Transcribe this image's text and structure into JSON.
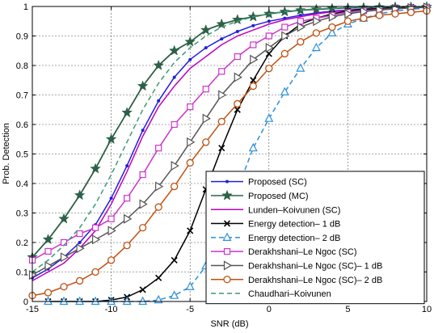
{
  "chart_data": {
    "type": "line",
    "title": "",
    "xlabel": "SNR (dB)",
    "ylabel": "Prob. Detection",
    "xlim": [
      -15,
      10
    ],
    "ylim": [
      0,
      1
    ],
    "xticks": [
      -15,
      -10,
      -5,
      0,
      5,
      10
    ],
    "yticks": [
      0,
      0.1,
      0.2,
      0.3,
      0.4,
      0.5,
      0.6,
      0.7,
      0.8,
      0.9,
      1
    ],
    "grid": true,
    "legend_position": "bottom-right",
    "series": [
      {
        "name": "Proposed (SC)",
        "color": "#1f1fe0",
        "line": "solid",
        "marker": "dot",
        "x": [
          -15,
          -14,
          -13,
          -12,
          -11,
          -10,
          -9,
          -8,
          -7,
          -6,
          -5,
          -4,
          -3,
          -2,
          -1,
          0,
          1,
          2,
          3,
          4,
          5,
          6,
          7,
          8,
          9,
          10
        ],
        "y": [
          0.08,
          0.11,
          0.15,
          0.2,
          0.26,
          0.35,
          0.46,
          0.58,
          0.68,
          0.76,
          0.82,
          0.86,
          0.89,
          0.915,
          0.935,
          0.95,
          0.96,
          0.97,
          0.978,
          0.984,
          0.988,
          0.991,
          0.993,
          0.995,
          0.996,
          0.997
        ]
      },
      {
        "name": "Proposed (MC)",
        "color": "#2e6048",
        "line": "solid",
        "marker": "star",
        "x": [
          -15,
          -14,
          -13,
          -12,
          -11,
          -10,
          -9,
          -8,
          -7,
          -6,
          -5,
          -4,
          -3,
          -2,
          -1,
          0,
          1,
          2,
          3,
          4,
          5,
          6,
          7,
          8,
          9,
          10
        ],
        "y": [
          0.15,
          0.21,
          0.28,
          0.36,
          0.45,
          0.55,
          0.64,
          0.73,
          0.8,
          0.85,
          0.88,
          0.92,
          0.94,
          0.955,
          0.965,
          0.975,
          0.982,
          0.987,
          0.99,
          0.993,
          0.995,
          0.996,
          0.997,
          0.998,
          0.998,
          0.999
        ]
      },
      {
        "name": "Lunden–Koivunen (SC)",
        "color": "#c000c0",
        "line": "solid",
        "marker": "none",
        "x": [
          -15,
          -14,
          -13,
          -12,
          -11,
          -10,
          -9,
          -8,
          -7,
          -6,
          -5,
          -4,
          -3,
          -2,
          -1,
          0,
          1,
          2,
          3,
          4,
          5,
          6,
          7,
          8,
          9,
          10
        ],
        "y": [
          0.07,
          0.1,
          0.13,
          0.18,
          0.24,
          0.33,
          0.44,
          0.56,
          0.66,
          0.73,
          0.79,
          0.83,
          0.87,
          0.9,
          0.92,
          0.94,
          0.955,
          0.965,
          0.975,
          0.982,
          0.987,
          0.99,
          0.993,
          0.995,
          0.996,
          0.997
        ]
      },
      {
        "name": "Energy detection– 1 dB",
        "color": "#000000",
        "line": "solid",
        "marker": "x",
        "x": [
          -14,
          -13,
          -12,
          -11,
          -10,
          -9,
          -8,
          -7,
          -6,
          -5,
          -4,
          -3,
          -2,
          -1,
          0,
          1,
          2,
          3,
          4,
          5,
          6,
          7,
          8,
          9,
          10
        ],
        "y": [
          0.0,
          0.0,
          0.0,
          0.0,
          0.005,
          0.015,
          0.04,
          0.08,
          0.14,
          0.24,
          0.38,
          0.52,
          0.65,
          0.75,
          0.84,
          0.9,
          0.94,
          0.96,
          0.975,
          0.985,
          0.99,
          0.993,
          0.996,
          0.998,
          0.999
        ]
      },
      {
        "name": "Energy detection– 2 dB",
        "color": "#2a8fd8",
        "line": "dashed",
        "marker": "triangle",
        "x": [
          -14,
          -13,
          -12,
          -11,
          -10,
          -9,
          -8,
          -7,
          -6,
          -5,
          -4,
          -3,
          -2,
          -1,
          0,
          1,
          2,
          3,
          4,
          5,
          6,
          7,
          8,
          9,
          10
        ],
        "y": [
          0.0,
          0.0,
          0.0,
          0.0,
          0.0,
          0.0,
          0.0,
          0.005,
          0.02,
          0.05,
          0.12,
          0.25,
          0.38,
          0.52,
          0.62,
          0.71,
          0.79,
          0.86,
          0.91,
          0.94,
          0.96,
          0.975,
          0.985,
          0.99,
          0.995
        ]
      },
      {
        "name": "Derakhshani–Le Ngoc (SC)",
        "color": "#cc33cc",
        "line": "solid",
        "marker": "square",
        "x": [
          -15,
          -14,
          -13,
          -12,
          -11,
          -10,
          -9,
          -8,
          -7,
          -6,
          -5,
          -4,
          -3,
          -2,
          -1,
          0,
          1,
          2,
          3,
          4,
          5,
          6,
          7,
          8,
          9,
          10
        ],
        "y": [
          0.14,
          0.17,
          0.2,
          0.23,
          0.25,
          0.28,
          0.35,
          0.43,
          0.52,
          0.6,
          0.66,
          0.72,
          0.78,
          0.83,
          0.87,
          0.9,
          0.93,
          0.95,
          0.96,
          0.97,
          0.98,
          0.985,
          0.99,
          0.993,
          0.995,
          0.997
        ]
      },
      {
        "name": "Derakhshani–Le Ngoc (SC)– 1 dB",
        "color": "#555555",
        "line": "solid",
        "marker": "triangle-right",
        "x": [
          -15,
          -14,
          -13,
          -12,
          -11,
          -10,
          -9,
          -8,
          -7,
          -6,
          -5,
          -4,
          -3,
          -2,
          -1,
          0,
          1,
          2,
          3,
          4,
          5,
          6,
          7,
          8,
          9,
          10
        ],
        "y": [
          0.09,
          0.12,
          0.15,
          0.18,
          0.21,
          0.24,
          0.28,
          0.33,
          0.39,
          0.46,
          0.54,
          0.62,
          0.7,
          0.76,
          0.82,
          0.86,
          0.9,
          0.93,
          0.95,
          0.965,
          0.975,
          0.983,
          0.988,
          0.992,
          0.995,
          0.997
        ]
      },
      {
        "name": "Derakhshani–Le Ngoc (SC)– 2 dB",
        "color": "#c05010",
        "line": "solid",
        "marker": "circle",
        "x": [
          -15,
          -14,
          -13,
          -12,
          -11,
          -10,
          -9,
          -8,
          -7,
          -6,
          -5,
          -4,
          -3,
          -2,
          -1,
          0,
          1,
          2,
          3,
          4,
          5,
          6,
          7,
          8,
          9,
          10
        ],
        "y": [
          0.02,
          0.03,
          0.05,
          0.07,
          0.1,
          0.14,
          0.19,
          0.25,
          0.32,
          0.39,
          0.47,
          0.54,
          0.61,
          0.67,
          0.73,
          0.79,
          0.84,
          0.88,
          0.91,
          0.93,
          0.95,
          0.96,
          0.97,
          0.975,
          0.98,
          0.985
        ]
      },
      {
        "name": "Chaudhari–Koivunen",
        "color": "#3a9a78",
        "line": "dashed",
        "marker": "none",
        "x": [
          -15,
          -14,
          -13,
          -12,
          -11,
          -10,
          -9,
          -8,
          -7,
          -6,
          -5,
          -4,
          -3,
          -2,
          -1,
          0,
          1,
          2,
          3,
          4,
          5,
          6,
          7,
          8,
          9,
          10
        ],
        "y": [
          0.1,
          0.14,
          0.19,
          0.25,
          0.33,
          0.43,
          0.54,
          0.65,
          0.74,
          0.81,
          0.86,
          0.9,
          0.93,
          0.95,
          0.965,
          0.975,
          0.983,
          0.988,
          0.992,
          0.994,
          0.996,
          0.997,
          0.998,
          0.999,
          0.999,
          1.0
        ]
      }
    ]
  }
}
